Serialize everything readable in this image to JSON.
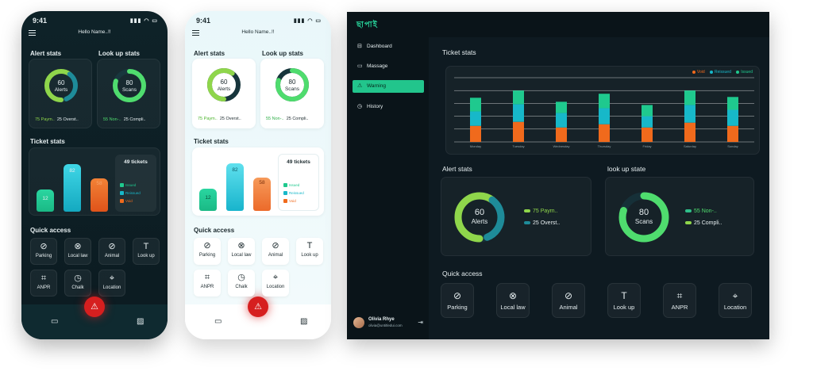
{
  "colors": {
    "issued": "#1fc98e",
    "reissued": "#17b8c9",
    "void": "#f06a1c",
    "accent": "#22c58c",
    "danger": "#d61f1f"
  },
  "phone_dark": {
    "status_time": "9:41",
    "greeting": "Hello Name..!!",
    "alert_stats": {
      "title": "Alert stats",
      "value": "60",
      "label": "Alerts",
      "leg1": "75 Paym..",
      "leg2": "25 Overst..",
      "share": 0.6
    },
    "lookup_stats": {
      "title": "Look up stats",
      "value": "80",
      "label": "Scans",
      "leg1": "55 Non-..",
      "leg2": "25 Compli..",
      "share": 0.8
    },
    "ticket_stats": {
      "title": "Ticket stats",
      "total": "49 tickets",
      "bars": [
        {
          "value": "12",
          "level": 0.4
        },
        {
          "value": "82",
          "level": 0.85
        },
        {
          "value": "58",
          "level": 0.6
        }
      ],
      "legend": [
        "Issued",
        "Reissued",
        "Void"
      ]
    },
    "quick_access": {
      "title": "Quick access",
      "items": [
        {
          "label": "Parking",
          "icon": "no-parking-icon"
        },
        {
          "label": "Local law",
          "icon": "no-entry-icon"
        },
        {
          "label": "Animal",
          "icon": "no-animal-icon"
        },
        {
          "label": "Look up",
          "icon": "text-icon"
        },
        {
          "label": "ANPR",
          "icon": "scan-icon"
        },
        {
          "label": "Chalk",
          "icon": "timer-icon"
        },
        {
          "label": "Location",
          "icon": "location-pin-icon"
        }
      ]
    }
  },
  "phone_light": {
    "status_time": "9:41",
    "greeting": "Hello Name..!!",
    "alert_stats": {
      "title": "Alert stats",
      "value": "60",
      "label": "Alerts",
      "leg1": "75 Paym..",
      "leg2": "25 Overst..",
      "share": 0.6
    },
    "lookup_stats": {
      "title": "Look up stats",
      "value": "80",
      "label": "Scans",
      "leg1": "55 Non-..",
      "leg2": "25 Compli..",
      "share": 0.8
    },
    "ticket_stats": {
      "title": "Ticket stats",
      "total": "49 tickets",
      "bars": [
        {
          "value": "12",
          "level": 0.4
        },
        {
          "value": "82",
          "level": 0.85
        },
        {
          "value": "58",
          "level": 0.6
        }
      ],
      "legend": [
        "Issued",
        "Reissued",
        "Void"
      ]
    },
    "quick_access": {
      "title": "Quick access",
      "items": [
        {
          "label": "Parking",
          "icon": "no-parking-icon"
        },
        {
          "label": "Local law",
          "icon": "no-entry-icon"
        },
        {
          "label": "Animal",
          "icon": "no-animal-icon"
        },
        {
          "label": "Look up",
          "icon": "text-icon"
        },
        {
          "label": "ANPR",
          "icon": "scan-icon"
        },
        {
          "label": "Chalk",
          "icon": "timer-icon"
        },
        {
          "label": "Location",
          "icon": "location-pin-icon"
        }
      ]
    }
  },
  "desktop": {
    "logo": "ছাপাই",
    "nav": [
      {
        "label": "Dashboard",
        "icon": "dashboard-icon"
      },
      {
        "label": "Massage",
        "icon": "message-icon"
      },
      {
        "label": "Warning",
        "icon": "warning-icon",
        "active": true
      },
      {
        "label": "History",
        "icon": "history-icon"
      }
    ],
    "user": {
      "name": "Olivia Rhye",
      "email": "olivia@untitledui.com"
    },
    "ticket_stats_title": "Ticket stats",
    "alert_stats": {
      "title": "Alert stats",
      "value": "60",
      "label": "Alerts",
      "leg1": "75 Paym..",
      "leg2": "25 Overst..",
      "share": 0.6
    },
    "lookup_state": {
      "title": "look up state",
      "value": "80",
      "label": "Scans",
      "leg1": "55 Non-..",
      "leg2": "25 Compli..",
      "share": 0.8
    },
    "quick_access": {
      "title": "Quick access",
      "items": [
        {
          "label": "Parking",
          "icon": "no-parking-icon"
        },
        {
          "label": "Local law",
          "icon": "no-entry-icon"
        },
        {
          "label": "Animal",
          "icon": "no-animal-icon"
        },
        {
          "label": "Look up",
          "icon": "text-icon"
        },
        {
          "label": "ANPR",
          "icon": "scan-icon"
        },
        {
          "label": "Location",
          "icon": "location-pin-icon"
        }
      ]
    }
  },
  "chart_data": {
    "type": "bar",
    "stacked": true,
    "categories": [
      "Monday",
      "Tuesday",
      "Wednesday",
      "Thursday",
      "Friday",
      "Saturday",
      "Sunday"
    ],
    "series": [
      {
        "name": "Void",
        "values": [
          20,
          25,
          18,
          22,
          18,
          24,
          20
        ]
      },
      {
        "name": "Reissued",
        "values": [
          18,
          22,
          18,
          20,
          14,
          22,
          20
        ]
      },
      {
        "name": "Issued",
        "values": [
          17,
          17,
          14,
          18,
          14,
          18,
          16
        ]
      }
    ],
    "ylim": [
      0,
      80
    ],
    "grid": true,
    "legend_position": "top-right"
  }
}
